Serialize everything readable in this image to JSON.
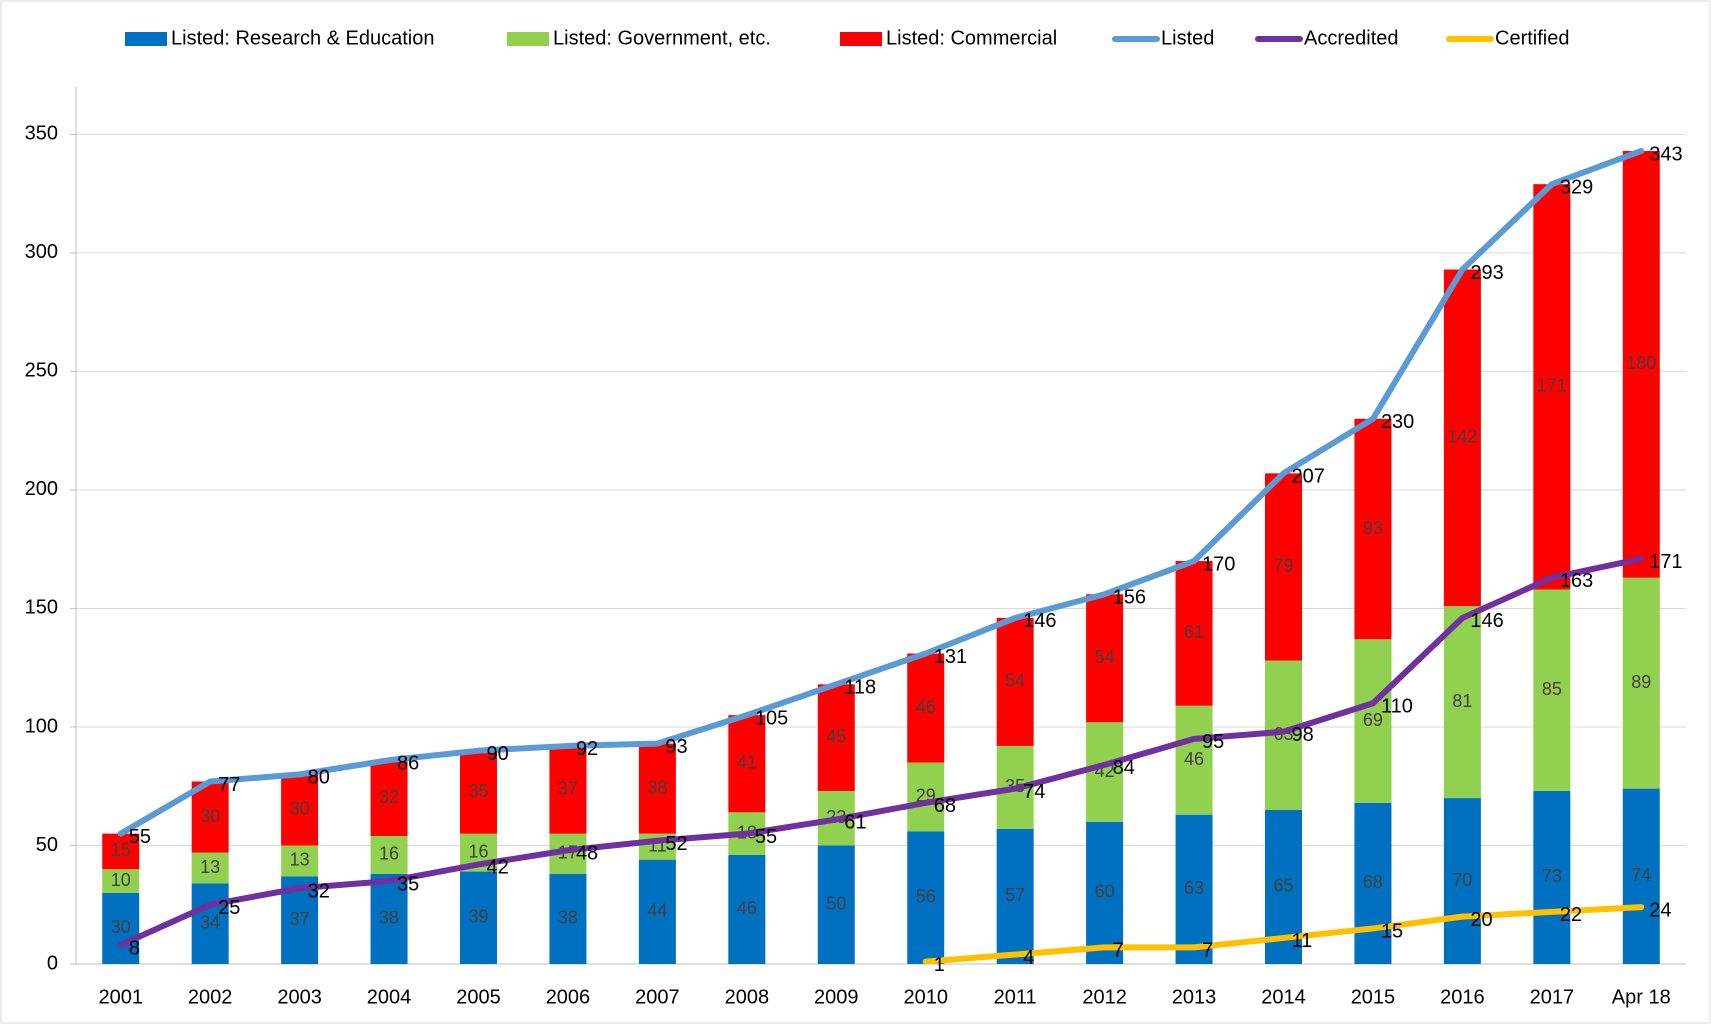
{
  "chart_data": {
    "type": "bar",
    "categories": [
      "2001",
      "2002",
      "2003",
      "2004",
      "2005",
      "2006",
      "2007",
      "2008",
      "2009",
      "2010",
      "2011",
      "2012",
      "2013",
      "2014",
      "2015",
      "2016",
      "2017",
      "Apr 18"
    ],
    "series": [
      {
        "name": "Listed: Research & Education",
        "type": "bar",
        "color": "#0070C0",
        "values": [
          30,
          34,
          37,
          38,
          39,
          38,
          44,
          46,
          50,
          56,
          57,
          60,
          63,
          65,
          68,
          70,
          73,
          74
        ]
      },
      {
        "name": "Listed: Government, etc.",
        "type": "bar",
        "color": "#92D050",
        "values": [
          10,
          13,
          13,
          16,
          16,
          17,
          11,
          18,
          23,
          29,
          35,
          42,
          46,
          63,
          69,
          81,
          85,
          89
        ]
      },
      {
        "name": "Listed: Commercial",
        "type": "bar",
        "color": "#FF0000",
        "values": [
          15,
          30,
          30,
          32,
          35,
          37,
          38,
          41,
          45,
          46,
          54,
          54,
          61,
          79,
          93,
          142,
          171,
          180
        ]
      },
      {
        "name": "Listed",
        "type": "line",
        "color": "#5B9BD5",
        "values": [
          55,
          77,
          80,
          86,
          90,
          92,
          93,
          105,
          118,
          131,
          146,
          156,
          170,
          207,
          230,
          293,
          329,
          343
        ]
      },
      {
        "name": "Accredited",
        "type": "line",
        "color": "#7030A0",
        "values": [
          8,
          25,
          32,
          35,
          42,
          48,
          52,
          55,
          61,
          68,
          74,
          84,
          95,
          98,
          110,
          146,
          163,
          171
        ]
      },
      {
        "name": "Certified",
        "type": "line",
        "color": "#FFC000",
        "values": [
          null,
          null,
          null,
          null,
          null,
          null,
          null,
          null,
          null,
          1,
          4,
          7,
          7,
          11,
          15,
          20,
          22,
          24
        ]
      }
    ],
    "ylim": [
      0,
      370
    ],
    "yticks": [
      0,
      50,
      100,
      150,
      200,
      250,
      300,
      350
    ],
    "grid": true,
    "legend": "top"
  }
}
